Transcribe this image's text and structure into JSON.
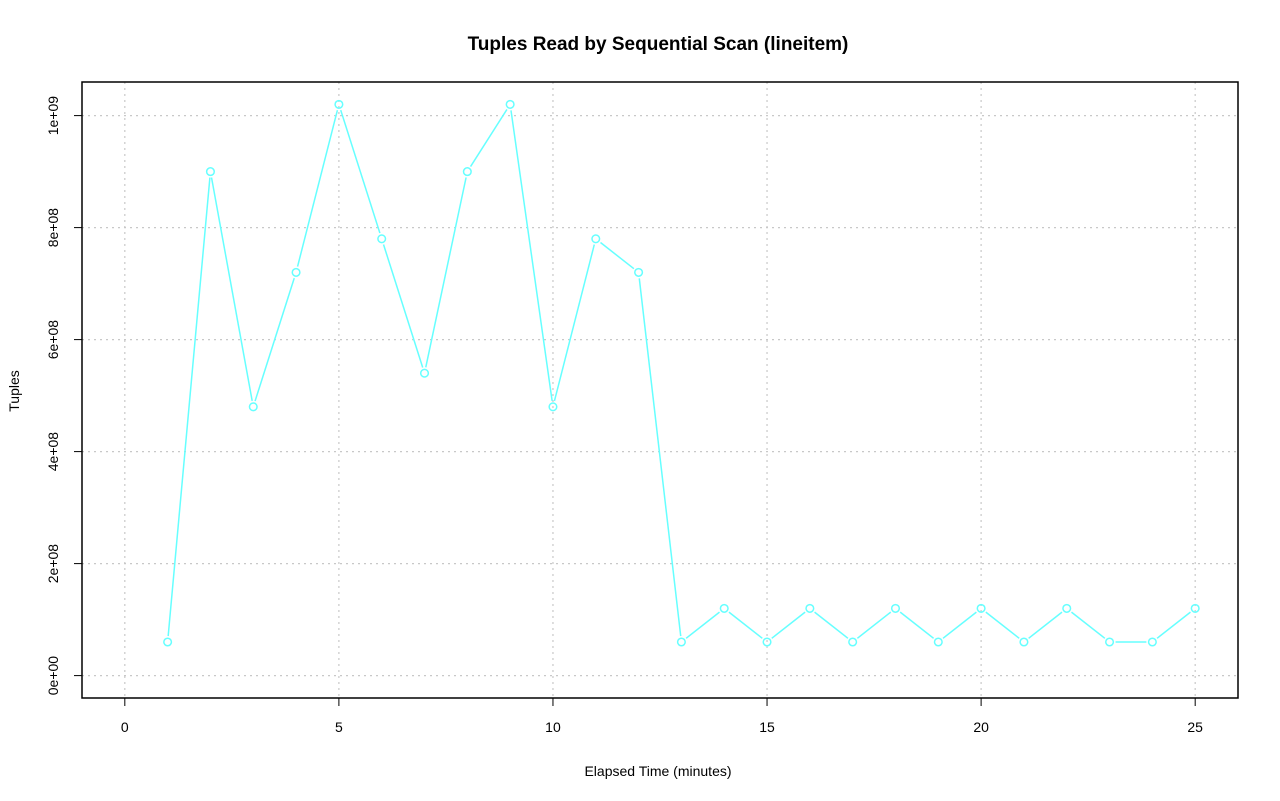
{
  "chart_data": {
    "type": "line",
    "title": "Tuples Read by Sequential Scan (lineitem)",
    "xlabel": "Elapsed Time (minutes)",
    "ylabel": "Tuples",
    "xlim": [
      -1,
      26
    ],
    "ylim": [
      -40000000,
      1060000000
    ],
    "x_ticks": [
      0,
      5,
      10,
      15,
      20,
      25
    ],
    "x_tick_labels": [
      "0",
      "5",
      "10",
      "15",
      "20",
      "25"
    ],
    "y_ticks": [
      0,
      200000000,
      400000000,
      600000000,
      800000000,
      1000000000
    ],
    "y_tick_labels": [
      "0e+00",
      "2e+08",
      "4e+08",
      "6e+08",
      "8e+08",
      "1e+09"
    ],
    "grid": true,
    "series": [
      {
        "color": "#66ffff",
        "x": [
          1,
          2,
          3,
          4,
          5,
          6,
          7,
          8,
          9,
          10,
          11,
          12,
          13,
          14,
          15,
          16,
          17,
          18,
          19,
          20,
          21,
          22,
          23,
          24,
          25
        ],
        "values": [
          60000000,
          900000000,
          480000000,
          720000000,
          1020000000,
          780000000,
          540000000,
          900000000,
          1020000000,
          480000000,
          780000000,
          720000000,
          60000000,
          120000000,
          60000000,
          120000000,
          60000000,
          120000000,
          60000000,
          120000000,
          60000000,
          120000000,
          60000000,
          60000000,
          120000000
        ]
      }
    ]
  }
}
